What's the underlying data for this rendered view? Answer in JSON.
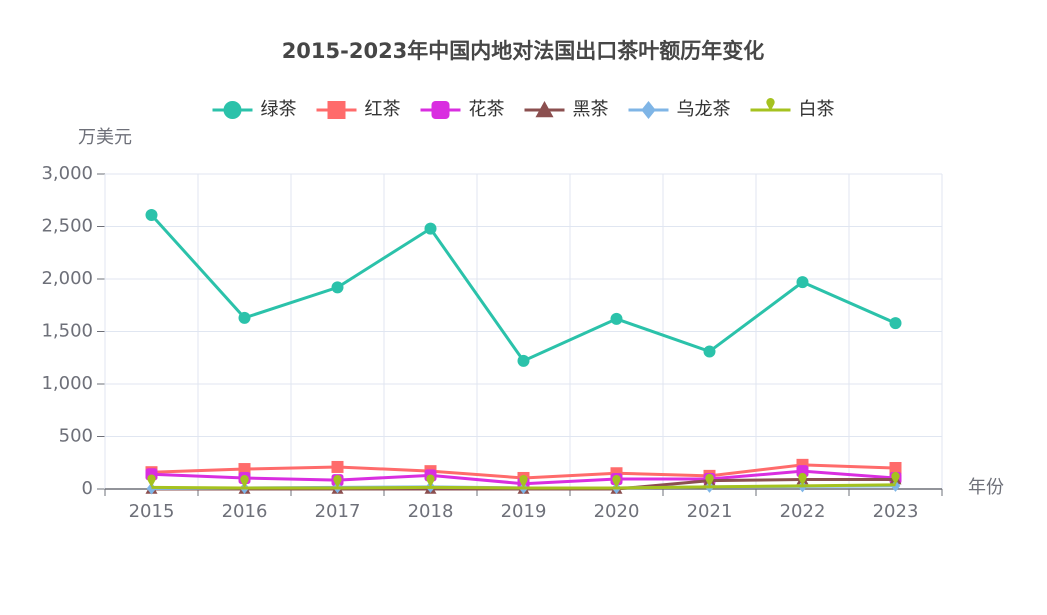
{
  "chart_data": {
    "type": "line",
    "title": "2015-2023年中国内地对法国出口茶叶额历年变化",
    "y_label": "万美元",
    "x_label": "年份",
    "categories": [
      "2015",
      "2016",
      "2017",
      "2018",
      "2019",
      "2020",
      "2021",
      "2022",
      "2023"
    ],
    "series": [
      {
        "name": "绿茶",
        "color": "#2bc2aa",
        "symbol": "circle",
        "values": [
          2610,
          1630,
          1920,
          2480,
          1220,
          1620,
          1310,
          1970,
          1580
        ]
      },
      {
        "name": "红茶",
        "color": "#ff6b6b",
        "symbol": "square",
        "values": [
          160,
          190,
          210,
          170,
          105,
          150,
          125,
          230,
          200
        ]
      },
      {
        "name": "花茶",
        "color": "#d92ee0",
        "symbol": "roundrect",
        "values": [
          140,
          105,
          85,
          130,
          50,
          95,
          95,
          170,
          105
        ]
      },
      {
        "name": "黑茶",
        "color": "#8b4f4f",
        "symbol": "triangle",
        "values": [
          0,
          0,
          0,
          0,
          0,
          0,
          80,
          90,
          90
        ]
      },
      {
        "name": "乌龙茶",
        "color": "#7fb5e6",
        "symbol": "diamond",
        "values": [
          5,
          10,
          15,
          20,
          10,
          10,
          20,
          25,
          30
        ]
      },
      {
        "name": "白茶",
        "color": "#a5c21f",
        "symbol": "pin",
        "values": [
          15,
          10,
          10,
          15,
          10,
          10,
          20,
          30,
          40
        ]
      }
    ],
    "ylim": [
      0,
      3000
    ],
    "yticks": [
      0,
      500,
      {
        "value": 1000,
        "label": "1,000"
      },
      {
        "value": 1500,
        "label": "1,500"
      },
      {
        "value": 2000,
        "label": "2,000"
      },
      {
        "value": 2500,
        "label": "2,500"
      },
      {
        "value": 3000,
        "label": "3,000"
      }
    ],
    "grid": true,
    "legend": "top"
  }
}
